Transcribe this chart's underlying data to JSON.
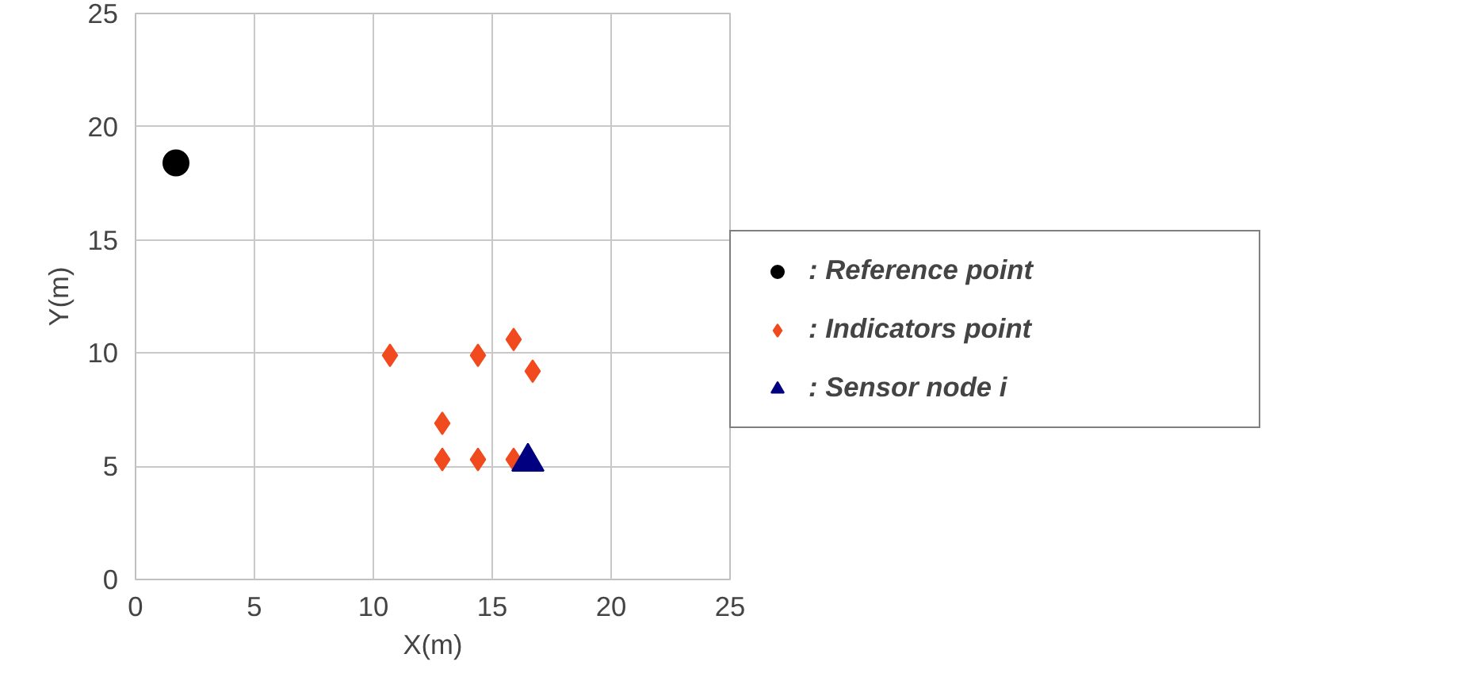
{
  "chart_data": {
    "type": "scatter",
    "xlabel": "X(m)",
    "ylabel": "Y(m)",
    "xlim": [
      0,
      25
    ],
    "ylim": [
      0,
      25
    ],
    "xticks": [
      0,
      5,
      10,
      15,
      20,
      25
    ],
    "yticks": [
      0,
      5,
      10,
      15,
      20,
      25
    ],
    "grid": true,
    "legend": "right",
    "series": [
      {
        "name": ": Reference point",
        "color": "#000000",
        "marker": "circle",
        "x": [
          1.7
        ],
        "values": [
          18.4
        ]
      },
      {
        "name": ": Indicators point",
        "color": "#f04a1e",
        "marker": "diamond",
        "x": [
          10.7,
          14.4,
          15.9,
          16.7,
          12.9,
          12.9,
          14.4,
          15.9
        ],
        "values": [
          9.9,
          9.9,
          10.6,
          9.2,
          6.9,
          5.3,
          5.3,
          5.3
        ]
      },
      {
        "name": ": Sensor node i",
        "color": "#000080",
        "marker": "triangle",
        "x": [
          16.5
        ],
        "values": [
          5.2
        ]
      }
    ]
  }
}
